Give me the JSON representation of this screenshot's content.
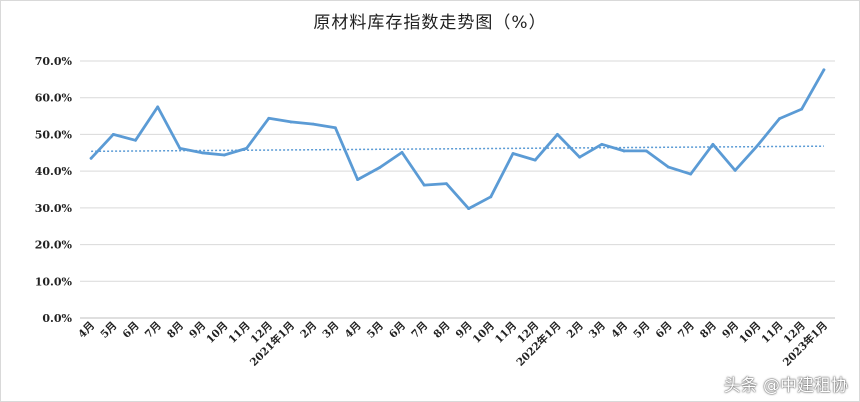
{
  "page_title": "原材料库存指数走势图（%）",
  "watermark": "头条 @中建租协",
  "colors": {
    "line": "#5b9bd5",
    "trend": "#5b9bd5",
    "grid": "#d9d9d9",
    "axis": "#bfbfbf"
  },
  "chart_data": {
    "type": "line",
    "title": "原材料库存指数走势图（%）",
    "xlabel": "",
    "ylabel": "",
    "ylim": [
      0,
      70
    ],
    "y_ticks": [
      "0.0%",
      "10.0%",
      "20.0%",
      "30.0%",
      "40.0%",
      "50.0%",
      "60.0%",
      "70.0%"
    ],
    "grid": "horizontal",
    "legend": "none",
    "categories": [
      "4月",
      "5月",
      "6月",
      "7月",
      "8月",
      "9月",
      "10月",
      "11月",
      "12月",
      "2021年1月",
      "2月",
      "3月",
      "4月",
      "5月",
      "6月",
      "7月",
      "8月",
      "9月",
      "10月",
      "11月",
      "12月",
      "2022年1月",
      "2月",
      "3月",
      "4月",
      "5月",
      "6月",
      "7月",
      "8月",
      "9月",
      "10月",
      "11月",
      "12月",
      "2023年1月"
    ],
    "series": [
      {
        "values": [
          43.5,
          50.0,
          48.4,
          57.5,
          46.2,
          45.0,
          44.4,
          46.2,
          54.4,
          53.4,
          52.8,
          51.8,
          37.7,
          41.0,
          45.1,
          36.2,
          36.6,
          29.8,
          33.0,
          44.8,
          43.0,
          50.0,
          43.8,
          47.3,
          45.5,
          45.5,
          41.1,
          39.2,
          47.3,
          40.2,
          46.9,
          54.3,
          56.9,
          67.6
        ]
      }
    ],
    "trendline": {
      "type": "linear",
      "style": "dotted",
      "start": 45.4,
      "end": 46.8
    }
  }
}
